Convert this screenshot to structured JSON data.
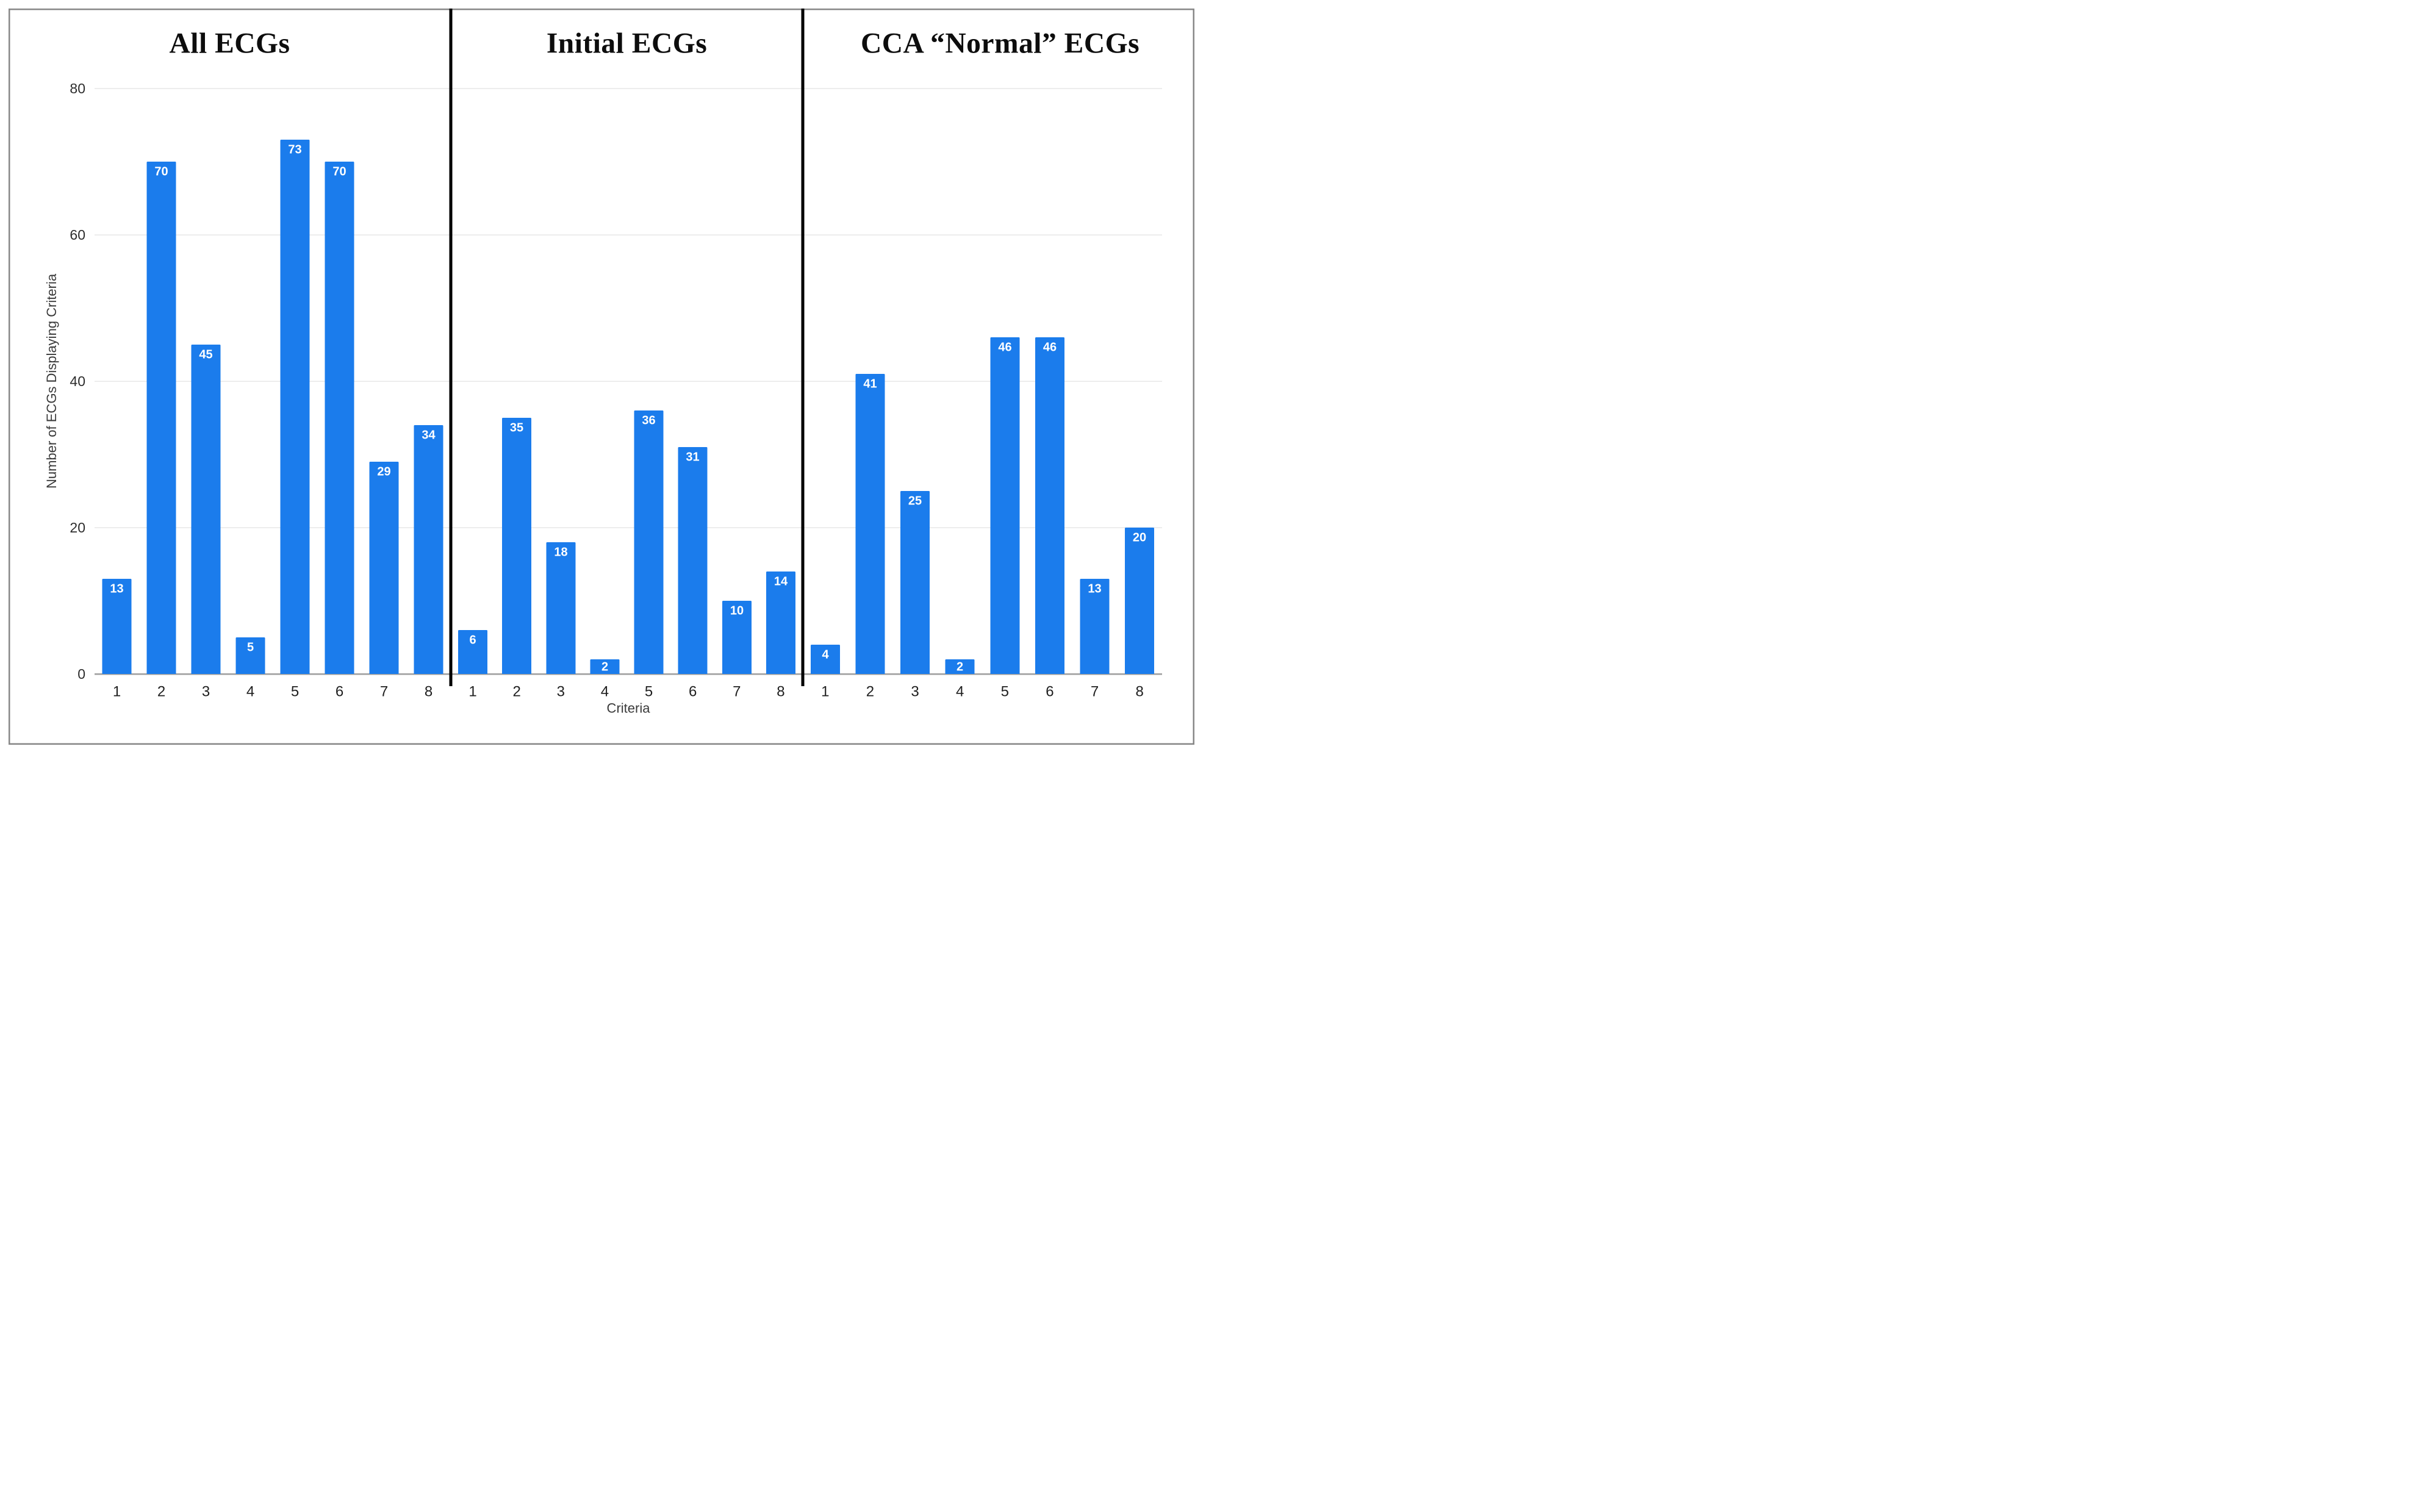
{
  "figure": {
    "y_axis_label": "Number of ECGs Displaying Criteria",
    "x_axis_label": "Criteria",
    "background_color": "#ffffff",
    "frame_border_color": "#878787",
    "bar_color": "#1b7cec",
    "bar_label_color": "#ffffff",
    "gridline_color": "#e7e7e7",
    "baseline_color": "#9e9e9e",
    "divider_color": "#000000",
    "y_ticks": [
      0,
      20,
      40,
      60,
      80
    ],
    "y_max": 80
  },
  "chart_data": [
    {
      "type": "bar",
      "title": "All ECGs",
      "categories": [
        "1",
        "2",
        "3",
        "4",
        "5",
        "6",
        "7",
        "8"
      ],
      "values": [
        13,
        70,
        45,
        5,
        73,
        70,
        29,
        34
      ],
      "xlabel": "Criteria",
      "ylabel": "Number of ECGs Displaying Criteria",
      "ylim": [
        0,
        80
      ],
      "grid": true,
      "legend": "none"
    },
    {
      "type": "bar",
      "title": "Initial ECGs",
      "categories": [
        "1",
        "2",
        "3",
        "4",
        "5",
        "6",
        "7",
        "8"
      ],
      "values": [
        6,
        35,
        18,
        2,
        36,
        31,
        10,
        14
      ],
      "xlabel": "Criteria",
      "ylabel": "Number of ECGs Displaying Criteria",
      "ylim": [
        0,
        80
      ],
      "grid": true,
      "legend": "none"
    },
    {
      "type": "bar",
      "title": "CCA “Normal” ECGs",
      "categories": [
        "1",
        "2",
        "3",
        "4",
        "5",
        "6",
        "7",
        "8"
      ],
      "values": [
        4,
        41,
        25,
        2,
        46,
        46,
        13,
        20
      ],
      "xlabel": "Criteria",
      "ylabel": "Number of ECGs Displaying Criteria",
      "ylim": [
        0,
        80
      ],
      "grid": true,
      "legend": "none"
    }
  ]
}
